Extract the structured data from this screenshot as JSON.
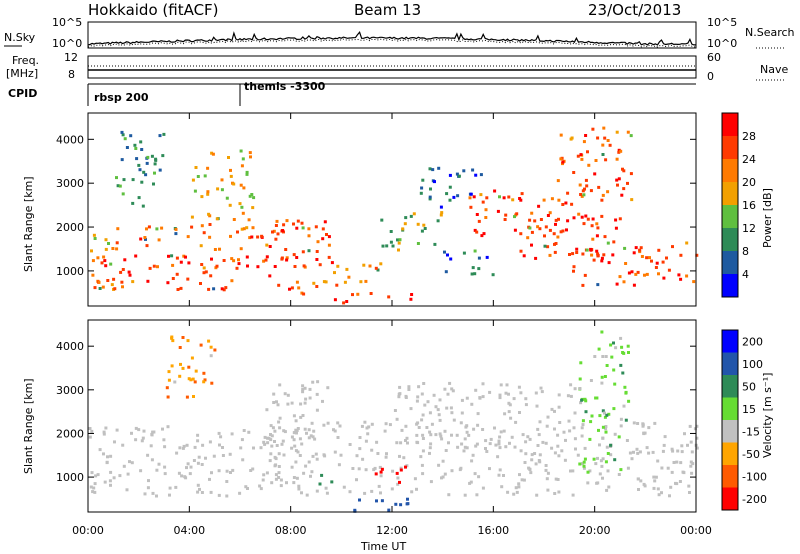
{
  "header": {
    "station": "Hokkaido (fitACF)",
    "beam": "Beam 13",
    "date": "23/Oct/2013"
  },
  "top_panels": {
    "nsky_label": "N.Sky",
    "nsky_ticks": [
      "10^5",
      "10^0"
    ],
    "nsearch_label": "N.Search",
    "nsearch_ticks": [
      "10^5",
      "10^0"
    ],
    "freq_label": "Freq.",
    "freq_unit": "[MHz]",
    "freq_ticks": [
      "12",
      "8"
    ],
    "nave_label": "Nave",
    "nave_ticks": [
      "60",
      "0"
    ],
    "cpid_label": "CPID",
    "cpid_entries": [
      {
        "label": "rbsp 200",
        "hour": 0
      },
      {
        "label": "themis -3300",
        "hour": 6.0
      }
    ]
  },
  "colors": {
    "power": [
      "#0000ff",
      "#1e5aa0",
      "#2e8b57",
      "#5fbf3f",
      "#f2a000",
      "#ff7a00",
      "#ff3a00",
      "#ff0000"
    ],
    "velocity": [
      "#ff0000",
      "#ff5a00",
      "#ffa500",
      "#c0c0c0",
      "#66dd33",
      "#2e8b57",
      "#2255aa",
      "#0000ff"
    ],
    "ground": "#c0c0c0"
  },
  "chart_data": [
    {
      "type": "heatmap",
      "name": "power",
      "ylabel": "Slant Range [km]",
      "xlim": [
        0,
        24
      ],
      "ylim": [
        200,
        4600
      ],
      "yticks": [
        1000,
        2000,
        3000,
        4000
      ],
      "colorbar_label": "Power [dB]",
      "colorbar_ticks": [
        "4",
        "8",
        "12",
        "16",
        "20",
        "24",
        "28"
      ],
      "colorbar_range": [
        0,
        32
      ],
      "blobs": [
        {
          "t0": 0,
          "t1": 1.2,
          "r0": 600,
          "r1": 2000,
          "v": 20
        },
        {
          "t0": 0.3,
          "t1": 8.5,
          "r0": 600,
          "r1": 1400,
          "v": 27
        },
        {
          "t0": 2,
          "t1": 8,
          "r0": 1500,
          "r1": 2100,
          "v": 24
        },
        {
          "t0": 7,
          "t1": 9.8,
          "r0": 1200,
          "r1": 2200,
          "v": 26
        },
        {
          "t0": 8.2,
          "t1": 11.5,
          "r0": 500,
          "r1": 1200,
          "v": 22
        },
        {
          "t0": 9.5,
          "t1": 12.8,
          "r0": 300,
          "r1": 500,
          "v": 30
        },
        {
          "t0": 11.5,
          "t1": 14,
          "r0": 1500,
          "r1": 2400,
          "v": 14
        },
        {
          "t0": 13,
          "t1": 15.5,
          "r0": 2400,
          "r1": 3400,
          "v": 6
        },
        {
          "t0": 15,
          "t1": 19.5,
          "r0": 1800,
          "r1": 2900,
          "v": 26
        },
        {
          "t0": 17,
          "t1": 21,
          "r0": 1300,
          "r1": 2300,
          "v": 28
        },
        {
          "t0": 19,
          "t1": 24,
          "r0": 700,
          "r1": 1700,
          "v": 27
        },
        {
          "t0": 18.5,
          "t1": 21.5,
          "r0": 2600,
          "r1": 4300,
          "v": 24
        },
        {
          "t0": 4,
          "t1": 6.5,
          "r0": 2200,
          "r1": 3800,
          "v": 18
        },
        {
          "t0": 14,
          "t1": 16,
          "r0": 900,
          "r1": 1500,
          "v": 6
        },
        {
          "t0": 1,
          "t1": 3,
          "r0": 2500,
          "r1": 4200,
          "v": 10
        }
      ]
    },
    {
      "type": "heatmap",
      "name": "velocity",
      "ylabel": "Slant Range [km]",
      "xlabel": "Time UT",
      "xlim": [
        0,
        24
      ],
      "ylim": [
        200,
        4600
      ],
      "xticks": [
        "00:00",
        "04:00",
        "08:00",
        "12:00",
        "16:00",
        "20:00",
        "00:00"
      ],
      "yticks": [
        1000,
        2000,
        3000,
        4000
      ],
      "colorbar_label": "Velocity [m s⁻¹]",
      "colorbar_ticks": [
        "200",
        "100",
        "50",
        "15",
        "-15",
        "-50",
        "-100",
        "-200"
      ],
      "blobs": [
        {
          "t0": 0,
          "t1": 9,
          "r0": 600,
          "r1": 2200,
          "v": 0
        },
        {
          "t0": 7,
          "t1": 24,
          "r0": 600,
          "r1": 2300,
          "v": 0
        },
        {
          "t0": 12,
          "t1": 19.5,
          "r0": 1800,
          "r1": 3200,
          "v": 0
        },
        {
          "t0": 7,
          "t1": 9.5,
          "r0": 2200,
          "r1": 3300,
          "v": 0
        },
        {
          "t0": 10.2,
          "t1": 13,
          "r0": 250,
          "r1": 600,
          "v": 150
        },
        {
          "t0": 9,
          "t1": 10,
          "r0": 800,
          "r1": 1100,
          "v": 80
        },
        {
          "t0": 19.3,
          "t1": 21.3,
          "r0": 1000,
          "r1": 4400,
          "v": 30
        },
        {
          "t0": 3,
          "t1": 5,
          "r0": 2800,
          "r1": 4300,
          "v": -40
        },
        {
          "t0": 11,
          "t1": 12.5,
          "r0": 900,
          "r1": 1300,
          "v": -150
        }
      ]
    }
  ]
}
